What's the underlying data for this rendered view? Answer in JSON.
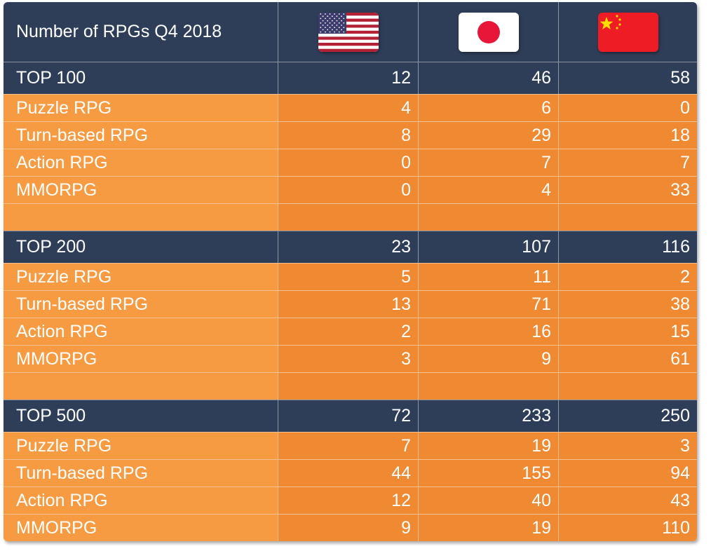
{
  "title": "Number of RPGs Q4 2018",
  "columns": [
    {
      "icon": "us-flag-icon"
    },
    {
      "icon": "japan-flag-icon"
    },
    {
      "icon": "china-flag-icon"
    }
  ],
  "colors": {
    "header": "#2f3e58",
    "label_cell": "#f79b42",
    "value_cell": "#f08a32",
    "text": "#ffffff"
  },
  "chart_data": {
    "type": "table",
    "title": "Number of RPGs Q4 2018",
    "sections": [
      {
        "label": "TOP 100",
        "totals": [
          "12",
          "46",
          "58"
        ],
        "rows": [
          {
            "label": "Puzzle RPG",
            "values": [
              "4",
              "6",
              "0"
            ]
          },
          {
            "label": "Turn-based RPG",
            "values": [
              "8",
              "29",
              "18"
            ]
          },
          {
            "label": "Action RPG",
            "values": [
              "0",
              "7",
              "7"
            ]
          },
          {
            "label": "MMORPG",
            "values": [
              "0",
              "4",
              "33"
            ]
          }
        ]
      },
      {
        "label": "TOP 200",
        "totals": [
          "23",
          "107",
          "116"
        ],
        "rows": [
          {
            "label": "Puzzle RPG",
            "values": [
              "5",
              "11",
              "2"
            ]
          },
          {
            "label": "Turn-based RPG",
            "values": [
              "13",
              "71",
              "38"
            ]
          },
          {
            "label": "Action RPG",
            "values": [
              "2",
              "16",
              "15"
            ]
          },
          {
            "label": "MMORPG",
            "values": [
              "3",
              "9",
              "61"
            ]
          }
        ]
      },
      {
        "label": "TOP 500",
        "totals": [
          "72",
          "233",
          "250"
        ],
        "rows": [
          {
            "label": "Puzzle RPG",
            "values": [
              "7",
              "19",
              "3"
            ]
          },
          {
            "label": "Turn-based RPG",
            "values": [
              "44",
              "155",
              "94"
            ]
          },
          {
            "label": "Action RPG",
            "values": [
              "12",
              "40",
              "43"
            ]
          },
          {
            "label": "MMORPG",
            "values": [
              "9",
              "19",
              "110"
            ]
          }
        ]
      }
    ]
  }
}
